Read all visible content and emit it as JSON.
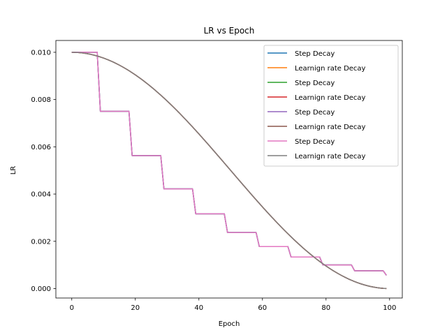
{
  "chart_data": {
    "type": "line",
    "title": "LR vs Epoch",
    "xlabel": "Epoch",
    "ylabel": "LR",
    "xlim": [
      -5,
      104
    ],
    "ylim": [
      -0.0004,
      0.0105
    ],
    "xticks": [
      0,
      20,
      40,
      60,
      80,
      100
    ],
    "yticks": [
      0.0,
      0.002,
      0.004,
      0.006,
      0.008,
      0.01
    ],
    "ytick_format": 3,
    "legend_position": "top-right",
    "grid": false,
    "step_params": {
      "initial": 0.01,
      "drop": 0.75,
      "epochs_per_drop": 10,
      "epochs": 100
    },
    "cosine_params": {
      "initial": 0.01,
      "min": 0.0,
      "epochs": 100
    },
    "series": [
      {
        "name": "Step Decay",
        "kind": "step",
        "color": "#1f77b4"
      },
      {
        "name": "Learnign rate Decay",
        "kind": "cosine",
        "color": "#ff7f0e"
      },
      {
        "name": "Step Decay",
        "kind": "step",
        "color": "#2ca02c"
      },
      {
        "name": "Learnign rate Decay",
        "kind": "cosine",
        "color": "#d62728"
      },
      {
        "name": "Step Decay",
        "kind": "step",
        "color": "#9467bd"
      },
      {
        "name": "Learnign rate Decay",
        "kind": "cosine",
        "color": "#8c564b"
      },
      {
        "name": "Step Decay",
        "kind": "step",
        "color": "#e377c2"
      },
      {
        "name": "Learnign rate Decay",
        "kind": "cosine",
        "color": "#7f7f7f"
      }
    ]
  }
}
